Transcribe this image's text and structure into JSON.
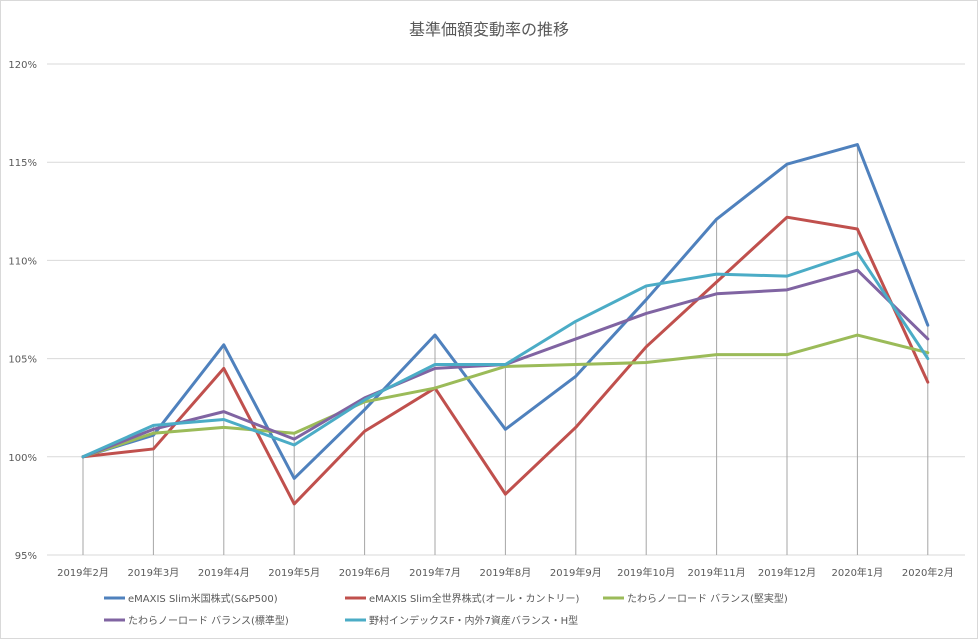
{
  "chart_data": {
    "type": "line",
    "title": "基準価額変動率の推移",
    "xlabel": "",
    "ylabel": "",
    "categories": [
      "2019年2月",
      "2019年3月",
      "2019年4月",
      "2019年5月",
      "2019年6月",
      "2019年7月",
      "2019年8月",
      "2019年9月",
      "2019年10月",
      "2019年11月",
      "2019年12月",
      "2020年1月",
      "2020年2月"
    ],
    "ylim": [
      95,
      120
    ],
    "yticks": [
      95,
      100,
      105,
      110,
      115,
      120
    ],
    "ytick_labels": [
      "95%",
      "100%",
      "105%",
      "110%",
      "115%",
      "120%"
    ],
    "grid": "horizontal gridlines; vertical drop lines at each category",
    "legend_position": "bottom",
    "series": [
      {
        "name": "eMAXIS Slim米国株式(S&P500)",
        "color": "#4f81bd",
        "values": [
          100,
          101.1,
          105.7,
          98.9,
          102.4,
          106.2,
          101.4,
          104.1,
          108.0,
          112.1,
          114.9,
          115.9,
          106.7
        ]
      },
      {
        "name": "eMAXIS Slim全世界株式(オール・カントリー)",
        "color": "#c0504d",
        "values": [
          100,
          100.4,
          104.5,
          97.6,
          101.3,
          103.5,
          98.1,
          101.5,
          105.6,
          108.9,
          112.2,
          111.6,
          103.8
        ]
      },
      {
        "name": "たわらノーロード バランス(堅実型)",
        "color": "#9bbb59",
        "values": [
          100,
          101.2,
          101.5,
          101.2,
          102.8,
          103.5,
          104.6,
          104.7,
          104.8,
          105.2,
          105.2,
          106.2,
          105.3
        ]
      },
      {
        "name": "たわらノーロード バランス(標準型)",
        "color": "#8064a2",
        "values": [
          100,
          101.4,
          102.3,
          100.9,
          103.0,
          104.5,
          104.7,
          106.0,
          107.3,
          108.3,
          108.5,
          109.5,
          106.0
        ]
      },
      {
        "name": "野村インデックスF・内外7資産バランス・H型",
        "color": "#4bacc6",
        "values": [
          100,
          101.6,
          101.9,
          100.6,
          102.9,
          104.7,
          104.7,
          106.9,
          108.7,
          109.3,
          109.2,
          110.4,
          105.0
        ]
      }
    ]
  }
}
